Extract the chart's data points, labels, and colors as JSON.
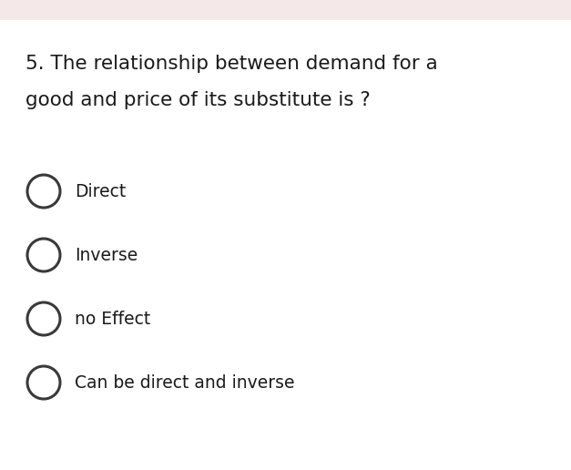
{
  "question_line1": "5. The relationship between demand for a",
  "question_line2": "good and price of its substitute is ?",
  "options": [
    "Direct",
    "Inverse",
    "no Effect",
    "Can be direct and inverse"
  ],
  "bg_color": "#ffffff",
  "top_bar_color": "#f5e8e8",
  "text_color": "#1a1a1a",
  "question_fontsize": 15.5,
  "option_fontsize": 13.5,
  "circle_edge_color": "#3a3a3a",
  "circle_linewidth": 2.2,
  "fig_width": 6.27,
  "fig_height": 5.16,
  "dpi": 100
}
